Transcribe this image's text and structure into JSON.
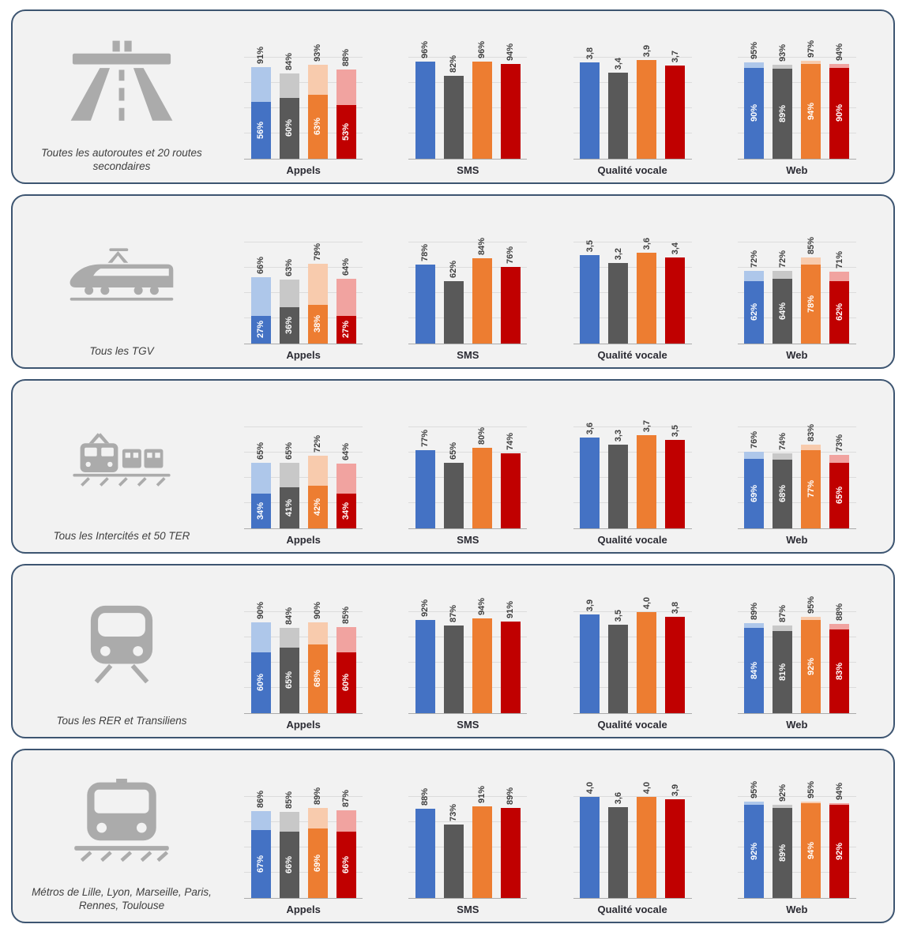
{
  "colors": {
    "panel_background": "#F2F2F2",
    "panel_border": "#3D5571",
    "icon_gray": "#ABABAB",
    "label_text": "#404040",
    "bar_label_text": "#3F3F3F"
  },
  "chart_data": {
    "type": "bar",
    "series_names": [
      "blue",
      "gray",
      "orange",
      "red"
    ],
    "series_colors": [
      "#4472C4",
      "#595959",
      "#ED7D31",
      "#C00000"
    ],
    "series_colors_light": [
      "#AEC7EA",
      "#C8C8C8",
      "#F8CBAD",
      "#F1A3A0"
    ],
    "legend": "none",
    "grid": "faint horizontal gridlines, baseline axis",
    "rows": [
      {
        "icon": "highway-icon",
        "label": "Toutes les autoroutes et 20 routes secondaires",
        "charts": [
          {
            "key": "appels",
            "title": "Appels",
            "max": 100,
            "values": [
              91,
              84,
              93,
              88
            ],
            "value_labels": [
              "91%",
              "84%",
              "93%",
              "88%"
            ],
            "inner_values": [
              56,
              60,
              63,
              53
            ],
            "inner_labels": [
              "56%",
              "60%",
              "63%",
              "53%"
            ]
          },
          {
            "key": "sms",
            "title": "SMS",
            "max": 100,
            "values": [
              96,
              82,
              96,
              94
            ],
            "value_labels": [
              "96%",
              "82%",
              "96%",
              "94%"
            ]
          },
          {
            "key": "qualite-vocale",
            "title": "Qualité vocale",
            "max": 4,
            "values": [
              3.8,
              3.4,
              3.9,
              3.7
            ],
            "value_labels": [
              "3,8",
              "3,4",
              "3,9",
              "3,7"
            ]
          },
          {
            "key": "web",
            "title": "Web",
            "max": 100,
            "values": [
              95,
              93,
              97,
              94
            ],
            "value_labels": [
              "95%",
              "93%",
              "97%",
              "94%"
            ],
            "inner_values": [
              90,
              89,
              94,
              90
            ],
            "inner_labels": [
              "90%",
              "89%",
              "94%",
              "90%"
            ]
          }
        ]
      },
      {
        "icon": "tgv-icon",
        "label": "Tous les TGV",
        "charts": [
          {
            "key": "appels",
            "title": "Appels",
            "max": 100,
            "values": [
              66,
              63,
              79,
              64
            ],
            "value_labels": [
              "66%",
              "63%",
              "79%",
              "64%"
            ],
            "inner_values": [
              27,
              36,
              38,
              27
            ],
            "inner_labels": [
              "27%",
              "36%",
              "38%",
              "27%"
            ]
          },
          {
            "key": "sms",
            "title": "SMS",
            "max": 100,
            "values": [
              78,
              62,
              84,
              76
            ],
            "value_labels": [
              "78%",
              "62%",
              "84%",
              "76%"
            ]
          },
          {
            "key": "qualite-vocale",
            "title": "Qualité vocale",
            "max": 4,
            "values": [
              3.5,
              3.2,
              3.6,
              3.4
            ],
            "value_labels": [
              "3,5",
              "3,2",
              "3,6",
              "3,4"
            ]
          },
          {
            "key": "web",
            "title": "Web",
            "max": 100,
            "values": [
              72,
              72,
              85,
              71
            ],
            "value_labels": [
              "72%",
              "72%",
              "85%",
              "71%"
            ],
            "inner_values": [
              62,
              64,
              78,
              62
            ],
            "inner_labels": [
              "62%",
              "64%",
              "78%",
              "62%"
            ]
          }
        ]
      },
      {
        "icon": "intercites-icon",
        "label": "Tous les Intercités et 50 TER",
        "charts": [
          {
            "key": "appels",
            "title": "Appels",
            "max": 100,
            "values": [
              65,
              65,
              72,
              64
            ],
            "value_labels": [
              "65%",
              "65%",
              "72%",
              "64%"
            ],
            "inner_values": [
              34,
              41,
              42,
              34
            ],
            "inner_labels": [
              "34%",
              "41%",
              "42%",
              "34%"
            ]
          },
          {
            "key": "sms",
            "title": "SMS",
            "max": 100,
            "values": [
              77,
              65,
              80,
              74
            ],
            "value_labels": [
              "77%",
              "65%",
              "80%",
              "74%"
            ]
          },
          {
            "key": "qualite-vocale",
            "title": "Qualité vocale",
            "max": 4,
            "values": [
              3.6,
              3.3,
              3.7,
              3.5
            ],
            "value_labels": [
              "3,6",
              "3,3",
              "3,7",
              "3,5"
            ]
          },
          {
            "key": "web",
            "title": "Web",
            "max": 100,
            "values": [
              76,
              74,
              83,
              73
            ],
            "value_labels": [
              "76%",
              "74%",
              "83%",
              "73%"
            ],
            "inner_values": [
              69,
              68,
              77,
              65
            ],
            "inner_labels": [
              "69%",
              "68%",
              "77%",
              "65%"
            ]
          }
        ]
      },
      {
        "icon": "rer-icon",
        "label": "Tous les RER et Transiliens",
        "charts": [
          {
            "key": "appels",
            "title": "Appels",
            "max": 100,
            "values": [
              90,
              84,
              90,
              85
            ],
            "value_labels": [
              "90%",
              "84%",
              "90%",
              "85%"
            ],
            "inner_values": [
              60,
              65,
              68,
              60
            ],
            "inner_labels": [
              "60%",
              "65%",
              "68%",
              "60%"
            ]
          },
          {
            "key": "sms",
            "title": "SMS",
            "max": 100,
            "values": [
              92,
              87,
              94,
              91
            ],
            "value_labels": [
              "92%",
              "87%",
              "94%",
              "91%"
            ]
          },
          {
            "key": "qualite-vocale",
            "title": "Qualité vocale",
            "max": 4,
            "values": [
              3.9,
              3.5,
              4.0,
              3.8
            ],
            "value_labels": [
              "3,9",
              "3,5",
              "4,0",
              "3,8"
            ]
          },
          {
            "key": "web",
            "title": "Web",
            "max": 100,
            "values": [
              89,
              87,
              95,
              88
            ],
            "value_labels": [
              "89%",
              "87%",
              "95%",
              "88%"
            ],
            "inner_values": [
              84,
              81,
              92,
              83
            ],
            "inner_labels": [
              "84%",
              "81%",
              "92%",
              "83%"
            ]
          }
        ]
      },
      {
        "icon": "metro-icon",
        "label": "Métros de Lille, Lyon, Marseille, Paris, Rennes, Toulouse",
        "charts": [
          {
            "key": "appels",
            "title": "Appels",
            "max": 100,
            "values": [
              86,
              85,
              89,
              87
            ],
            "value_labels": [
              "86%",
              "85%",
              "89%",
              "87%"
            ],
            "inner_values": [
              67,
              66,
              69,
              66
            ],
            "inner_labels": [
              "67%",
              "66%",
              "69%",
              "66%"
            ]
          },
          {
            "key": "sms",
            "title": "SMS",
            "max": 100,
            "values": [
              88,
              73,
              91,
              89
            ],
            "value_labels": [
              "88%",
              "73%",
              "91%",
              "89%"
            ]
          },
          {
            "key": "qualite-vocale",
            "title": "Qualité vocale",
            "max": 4,
            "values": [
              4.0,
              3.6,
              4.0,
              3.9
            ],
            "value_labels": [
              "4,0",
              "3,6",
              "4,0",
              "3,9"
            ]
          },
          {
            "key": "web",
            "title": "Web",
            "max": 100,
            "values": [
              95,
              92,
              95,
              94
            ],
            "value_labels": [
              "95%",
              "92%",
              "95%",
              "94%"
            ],
            "inner_values": [
              92,
              89,
              94,
              92
            ],
            "inner_labels": [
              "92%",
              "89%",
              "94%",
              "92%"
            ]
          }
        ]
      }
    ]
  }
}
